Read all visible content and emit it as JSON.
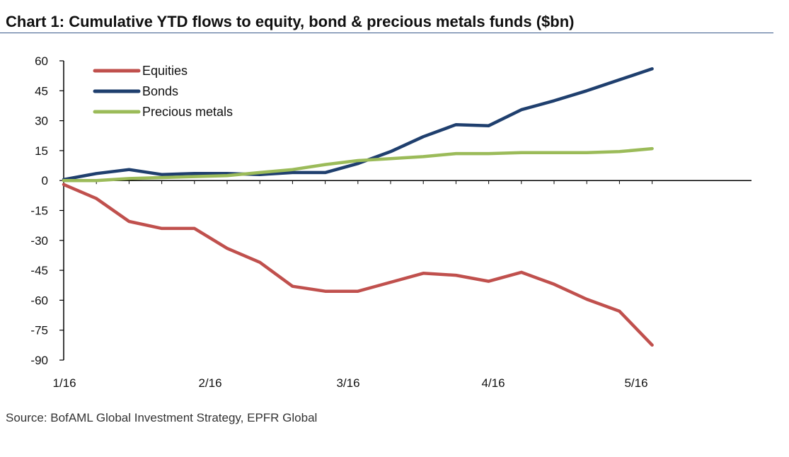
{
  "chart_data": {
    "type": "line",
    "title": "Chart 1: Cumulative YTD flows to equity, bond & precious metals funds ($bn)",
    "source": "Source: BofAML Global Investment Strategy, EPFR Global",
    "x_tick_labels": [
      "1/16",
      "2/16",
      "3/16",
      "4/16",
      "5/16"
    ],
    "y_ticks": [
      60,
      45,
      30,
      15,
      0,
      -15,
      -30,
      -45,
      -60,
      -75,
      -90
    ],
    "ylim": [
      -90,
      60
    ],
    "week_index": [
      0,
      1,
      2,
      3,
      4,
      5,
      6,
      7,
      8,
      9,
      10,
      11,
      12,
      13,
      14,
      15,
      16,
      17,
      18
    ],
    "legend_position": "top-left",
    "grid": false,
    "series": [
      {
        "name": "Equities",
        "color": "#c0504d",
        "values": [
          -2,
          -9,
          -20.5,
          -24,
          -24,
          -34,
          -41,
          -53,
          -55.5,
          -55.5,
          -51,
          -46.5,
          -47.5,
          -50.5,
          -46,
          -52,
          -59.5,
          -65.5,
          -82.5
        ]
      },
      {
        "name": "Bonds",
        "color": "#1f3f6e",
        "values": [
          0.5,
          3.5,
          5.5,
          3,
          3.5,
          3.5,
          3,
          4,
          4,
          8.5,
          14.5,
          22,
          28,
          27.5,
          35.5,
          40,
          45,
          50.5,
          56
        ]
      },
      {
        "name": "Precious metals",
        "color": "#9bbb59",
        "values": [
          0,
          0,
          1,
          1.5,
          2,
          2.5,
          4,
          5.5,
          8,
          10,
          11,
          12,
          13.5,
          13.5,
          14,
          14,
          14,
          14.5,
          16
        ]
      }
    ]
  }
}
